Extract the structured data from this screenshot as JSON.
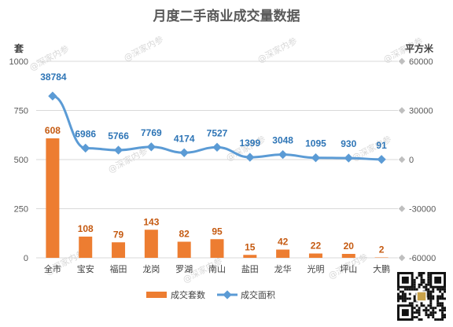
{
  "chart_data": {
    "type": "bar+line",
    "title": "月度二手商业成交量数据",
    "categories": [
      "全市",
      "宝安",
      "福田",
      "龙岗",
      "罗湖",
      "南山",
      "盐田",
      "龙华",
      "光明",
      "坪山",
      "大鹏"
    ],
    "left_axis": {
      "unit": "套",
      "min": 0,
      "max": 1000,
      "ticks": [
        0,
        250,
        500,
        750,
        1000
      ]
    },
    "right_axis": {
      "unit": "平方米",
      "min": -60000,
      "max": 60000,
      "ticks": [
        -60000,
        -30000,
        0,
        30000,
        60000
      ]
    },
    "series": [
      {
        "name": "成交套数",
        "type": "bar",
        "axis": "left",
        "color": "#ed7d31",
        "values": [
          608,
          108,
          79,
          143,
          82,
          95,
          15,
          42,
          22,
          20,
          2
        ]
      },
      {
        "name": "成交面积",
        "type": "line",
        "axis": "right",
        "color": "#5b9bd5",
        "values": [
          38784,
          6986,
          5766,
          7769,
          4174,
          7527,
          1399,
          3048,
          1095,
          930,
          91
        ]
      }
    ],
    "legend": "bottom-center",
    "grid": true
  },
  "watermark": "@深家内参"
}
